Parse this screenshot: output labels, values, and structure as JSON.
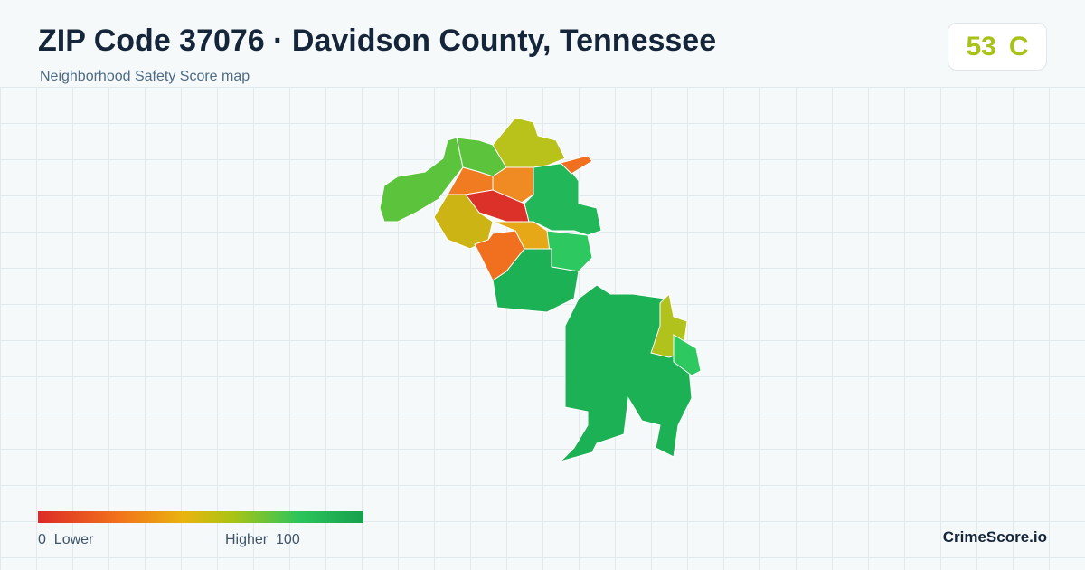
{
  "header": {
    "title": "ZIP Code 37076 · Davidson County, Tennessee",
    "subtitle": "Neighborhood Safety Score map"
  },
  "score": {
    "value": 53,
    "grade": "C"
  },
  "legend": {
    "min": 0,
    "min_label": "Lower",
    "max_label": "Higher",
    "max": 100
  },
  "brand": "CrimeScore.io"
}
